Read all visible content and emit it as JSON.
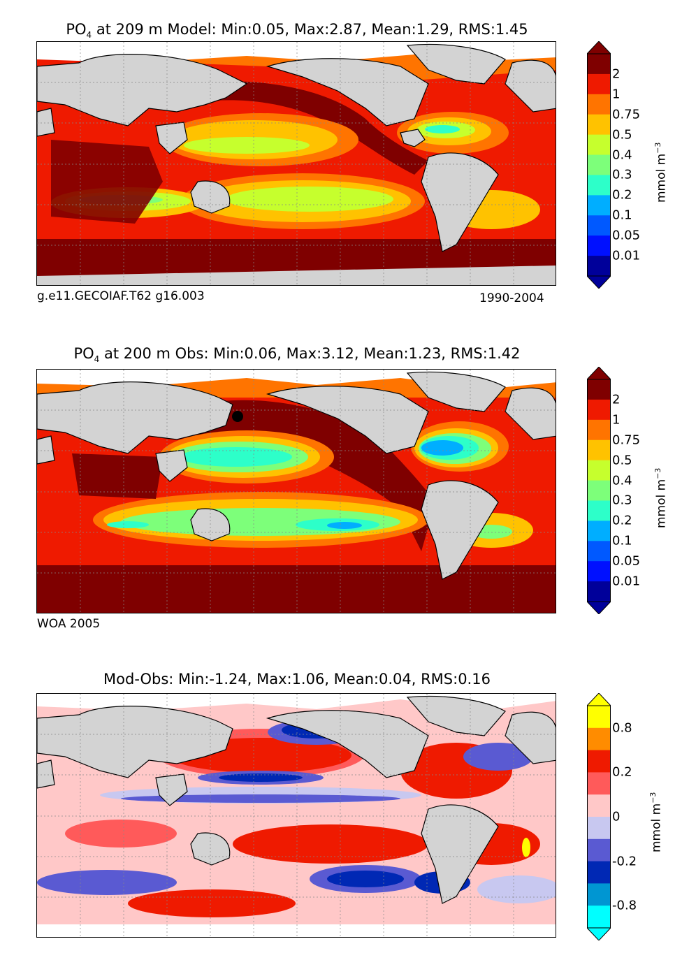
{
  "chart_data": [
    {
      "type": "heatmap",
      "title_var": "PO",
      "title_sub": "4",
      "title_rest": " at 209 m Model: Min:0.05, Max:2.87, Mean:1.29, RMS:1.45",
      "stats": {
        "min": 0.05,
        "max": 2.87,
        "mean": 1.29,
        "rms": 1.45
      },
      "caption_left": "g.e11.GECOIAF.T62 g16.003",
      "caption_right": "1990-2004",
      "colorbar_levels": [
        "2",
        "1",
        "0.75",
        "0.5",
        "0.4",
        "0.3",
        "0.2",
        "0.1",
        "0.05",
        "0.01"
      ],
      "colorbar_colors": [
        "#800000",
        "#7f0000",
        "#ef1a00",
        "#ff7400",
        "#ffc200",
        "#c6ff2d",
        "#7dff7a",
        "#2dffc9",
        "#00aeff",
        "#0059ff",
        "#0010ff",
        "#00009a"
      ],
      "colorbar_units": "mmol m",
      "colorbar_units_sup": "−3"
    },
    {
      "type": "heatmap",
      "title_var": "PO",
      "title_sub": "4",
      "title_rest": " at 200 m Obs: Min:0.06, Max:3.12, Mean:1.23, RMS:1.42",
      "stats": {
        "min": 0.06,
        "max": 3.12,
        "mean": 1.23,
        "rms": 1.42
      },
      "caption_left": "WOA 2005",
      "caption_right": "",
      "colorbar_levels": [
        "2",
        "1",
        "0.75",
        "0.5",
        "0.4",
        "0.3",
        "0.2",
        "0.1",
        "0.05",
        "0.01"
      ],
      "colorbar_colors": [
        "#800000",
        "#7f0000",
        "#ef1a00",
        "#ff7400",
        "#ffc200",
        "#c6ff2d",
        "#7dff7a",
        "#2dffc9",
        "#00aeff",
        "#0059ff",
        "#0010ff",
        "#00009a"
      ],
      "colorbar_units": "mmol m",
      "colorbar_units_sup": "−3"
    },
    {
      "type": "heatmap",
      "title_text": "Mod-Obs: Min:-1.24, Max:1.06, Mean:0.04, RMS:0.16",
      "stats": {
        "min": -1.24,
        "max": 1.06,
        "mean": 0.04,
        "rms": 0.16
      },
      "colorbar_levels": [
        "0.8",
        "0.2",
        "0",
        "-0.2",
        "-0.8"
      ],
      "colorbar_colors": [
        "#ffff00",
        "#ff8c00",
        "#ef1a00",
        "#ff5a5a",
        "#ffc8c8",
        "#c8c8f0",
        "#5a5ad2",
        "#0028b4",
        "#0096d2",
        "#00ffff"
      ],
      "colorbar_units": "mmol m",
      "colorbar_units_sup": "−3"
    }
  ]
}
